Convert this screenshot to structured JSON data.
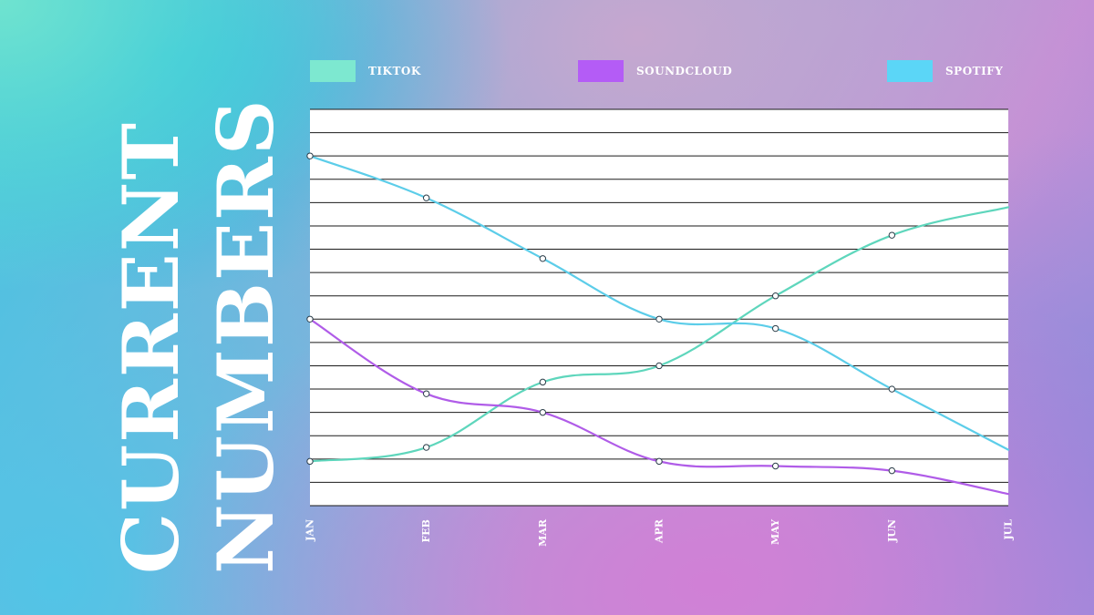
{
  "slide": {
    "title_line1": "CURRENT",
    "title_line2": "NUMBERS"
  },
  "chart_data": {
    "type": "line",
    "title": "",
    "xlabel": "",
    "ylabel": "",
    "categories": [
      "JAN",
      "FEB",
      "MAR",
      "APR",
      "MAY",
      "JUN",
      "JUL"
    ],
    "ylim": [
      0,
      17
    ],
    "grid": true,
    "legend_position": "top",
    "series": [
      {
        "name": "TIKTOK",
        "color": "#7de8d0",
        "line_color": "#5ed6bc",
        "values": [
          1.9,
          2.5,
          5.3,
          6.0,
          9.0,
          11.6,
          12.8
        ]
      },
      {
        "name": "SOUNDCLOUD",
        "color": "#b45cf6",
        "line_color": "#b05ce8",
        "values": [
          8.0,
          4.8,
          4.0,
          1.9,
          1.7,
          1.5,
          0.5
        ]
      },
      {
        "name": "SPOTIFY",
        "color": "#5bd6f7",
        "line_color": "#5ccde9",
        "values": [
          15.0,
          13.2,
          10.6,
          8.0,
          7.6,
          5.0,
          2.4
        ]
      }
    ]
  }
}
